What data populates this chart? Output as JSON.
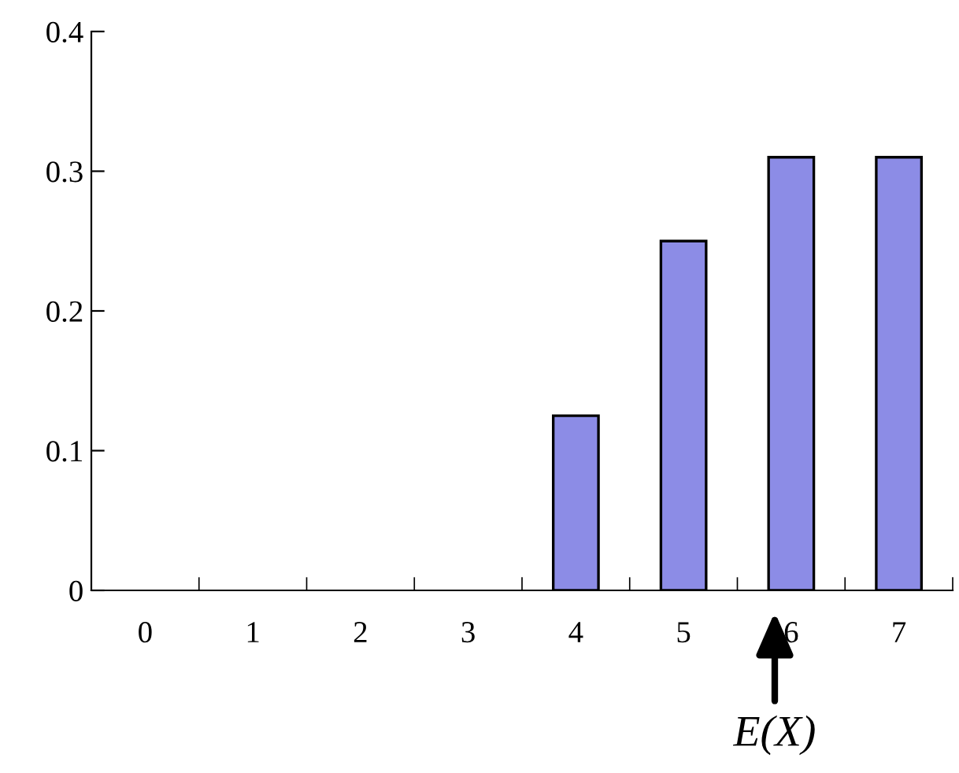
{
  "chart_data": {
    "type": "bar",
    "x": [
      0,
      1,
      2,
      3,
      4,
      5,
      6,
      7
    ],
    "values": [
      0,
      0,
      0,
      0,
      0.125,
      0.25,
      0.31,
      0.31
    ],
    "color": "#8c8ce6",
    "xlim": [
      -0.5,
      7.5
    ],
    "xticks": [
      0,
      1,
      2,
      3,
      4,
      5,
      6,
      7
    ],
    "ylim": [
      0,
      0.4
    ],
    "yticks": [
      0,
      0.1,
      0.2,
      0.3,
      0.4
    ],
    "grid": false,
    "annotations": [
      "E(X)"
    ]
  }
}
